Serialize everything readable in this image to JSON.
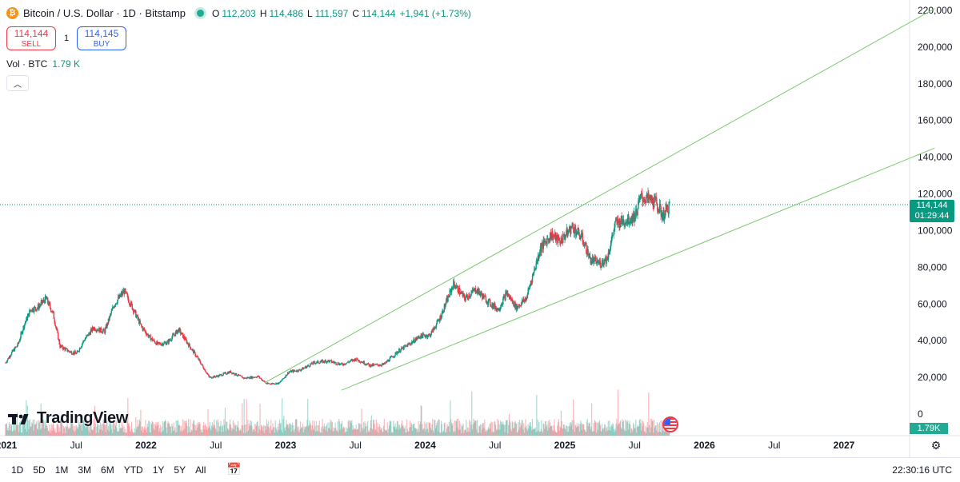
{
  "legend": {
    "symbol_icon": "bitcoin-icon",
    "title": "Bitcoin / U.S. Dollar · 1D · Bitstamp",
    "open_key": "O",
    "open": "112,203",
    "high_key": "H",
    "high": "114,486",
    "low_key": "L",
    "low": "111,597",
    "close_key": "C",
    "close": "114,144",
    "change": "+1,941 (+1.73%)"
  },
  "trade": {
    "sell_price": "114,144",
    "sell_label": "SELL",
    "spread": "1",
    "buy_price": "114,145",
    "buy_label": "BUY"
  },
  "volume": {
    "label": "Vol · BTC",
    "value": "1.79 K",
    "axis_value": "1.79K"
  },
  "price_tag": {
    "price": "114,144",
    "countdown": "01:29:44"
  },
  "branding": {
    "logo": "TradingView"
  },
  "bottom": {
    "ranges": [
      "1D",
      "5D",
      "1M",
      "3M",
      "6M",
      "YTD",
      "1Y",
      "5Y",
      "All"
    ],
    "clock": "22:30:16 UTC"
  },
  "colors": {
    "up": "#089981",
    "down": "#f23645",
    "channel": "#7bc96f",
    "grid": "#f0f3fa"
  },
  "chart_data": {
    "type": "candlestick",
    "title": "Bitcoin / U.S. Dollar · 1D · Bitstamp",
    "y_axis": {
      "ylim": [
        0,
        225000
      ],
      "ticks": [
        "220,000",
        "200,000",
        "180,000",
        "160,000",
        "140,000",
        "120,000",
        "100,000",
        "80,000",
        "60,000",
        "40,000",
        "20,000",
        "0"
      ],
      "tick_values": [
        220000,
        200000,
        180000,
        160000,
        140000,
        120000,
        100000,
        80000,
        60000,
        40000,
        20000,
        0
      ]
    },
    "x_axis": {
      "range": [
        2021.0,
        2027.5
      ],
      "ticks": [
        {
          "label": "2021",
          "t": 2021.0,
          "bold": true
        },
        {
          "label": "Jul",
          "t": 2021.5,
          "bold": false
        },
        {
          "label": "2022",
          "t": 2022.0,
          "bold": true
        },
        {
          "label": "Jul",
          "t": 2022.5,
          "bold": false
        },
        {
          "label": "2023",
          "t": 2023.0,
          "bold": true
        },
        {
          "label": "Jul",
          "t": 2023.5,
          "bold": false
        },
        {
          "label": "2024",
          "t": 2024.0,
          "bold": true
        },
        {
          "label": "Jul",
          "t": 2024.5,
          "bold": false
        },
        {
          "label": "2025",
          "t": 2025.0,
          "bold": true
        },
        {
          "label": "Jul",
          "t": 2025.5,
          "bold": false
        },
        {
          "label": "2026",
          "t": 2026.0,
          "bold": true
        },
        {
          "label": "Jul",
          "t": 2026.5,
          "bold": false
        },
        {
          "label": "2027",
          "t": 2027.0,
          "bold": true
        }
      ]
    },
    "price_path": [
      [
        2020.99,
        28000
      ],
      [
        2021.03,
        33000
      ],
      [
        2021.08,
        38000
      ],
      [
        2021.12,
        48000
      ],
      [
        2021.17,
        57000
      ],
      [
        2021.22,
        58000
      ],
      [
        2021.28,
        63000
      ],
      [
        2021.33,
        55000
      ],
      [
        2021.38,
        37000
      ],
      [
        2021.45,
        34000
      ],
      [
        2021.5,
        33000
      ],
      [
        2021.55,
        40000
      ],
      [
        2021.62,
        47000
      ],
      [
        2021.7,
        45000
      ],
      [
        2021.77,
        60000
      ],
      [
        2021.84,
        67000
      ],
      [
        2021.9,
        58000
      ],
      [
        2021.96,
        48000
      ],
      [
        2022.02,
        42000
      ],
      [
        2022.08,
        38000
      ],
      [
        2022.15,
        39000
      ],
      [
        2022.23,
        46000
      ],
      [
        2022.3,
        38000
      ],
      [
        2022.37,
        30000
      ],
      [
        2022.45,
        20000
      ],
      [
        2022.5,
        20500
      ],
      [
        2022.6,
        23000
      ],
      [
        2022.7,
        19500
      ],
      [
        2022.8,
        20500
      ],
      [
        2022.86,
        16500
      ],
      [
        2022.95,
        16800
      ],
      [
        2023.02,
        23000
      ],
      [
        2023.1,
        24000
      ],
      [
        2023.2,
        28000
      ],
      [
        2023.3,
        29000
      ],
      [
        2023.4,
        27000
      ],
      [
        2023.5,
        30000
      ],
      [
        2023.6,
        26500
      ],
      [
        2023.7,
        27000
      ],
      [
        2023.8,
        34000
      ],
      [
        2023.88,
        38000
      ],
      [
        2023.96,
        42500
      ],
      [
        2024.03,
        43000
      ],
      [
        2024.1,
        52000
      ],
      [
        2024.2,
        71000
      ],
      [
        2024.28,
        63000
      ],
      [
        2024.36,
        68000
      ],
      [
        2024.45,
        61000
      ],
      [
        2024.52,
        57000
      ],
      [
        2024.58,
        66000
      ],
      [
        2024.65,
        58000
      ],
      [
        2024.72,
        63000
      ],
      [
        2024.82,
        90000
      ],
      [
        2024.9,
        98000
      ],
      [
        2024.96,
        94000
      ],
      [
        2025.05,
        102000
      ],
      [
        2025.12,
        96000
      ],
      [
        2025.18,
        84000
      ],
      [
        2025.25,
        82000
      ],
      [
        2025.3,
        85000
      ],
      [
        2025.36,
        104000
      ],
      [
        2025.45,
        106000
      ],
      [
        2025.5,
        108000
      ],
      [
        2025.54,
        118000
      ],
      [
        2025.6,
        117000
      ],
      [
        2025.65,
        115000
      ],
      [
        2025.7,
        108000
      ],
      [
        2025.75,
        114144
      ]
    ],
    "channel_lines": [
      {
        "name": "upper",
        "from": [
          2022.85,
          17000
        ],
        "to": [
          2027.65,
          221000
        ]
      },
      {
        "name": "lower",
        "from": [
          2023.4,
          13000
        ],
        "to": [
          2027.65,
          145000
        ]
      }
    ],
    "last_price": 114144,
    "volume_series": "Vol · BTC"
  }
}
